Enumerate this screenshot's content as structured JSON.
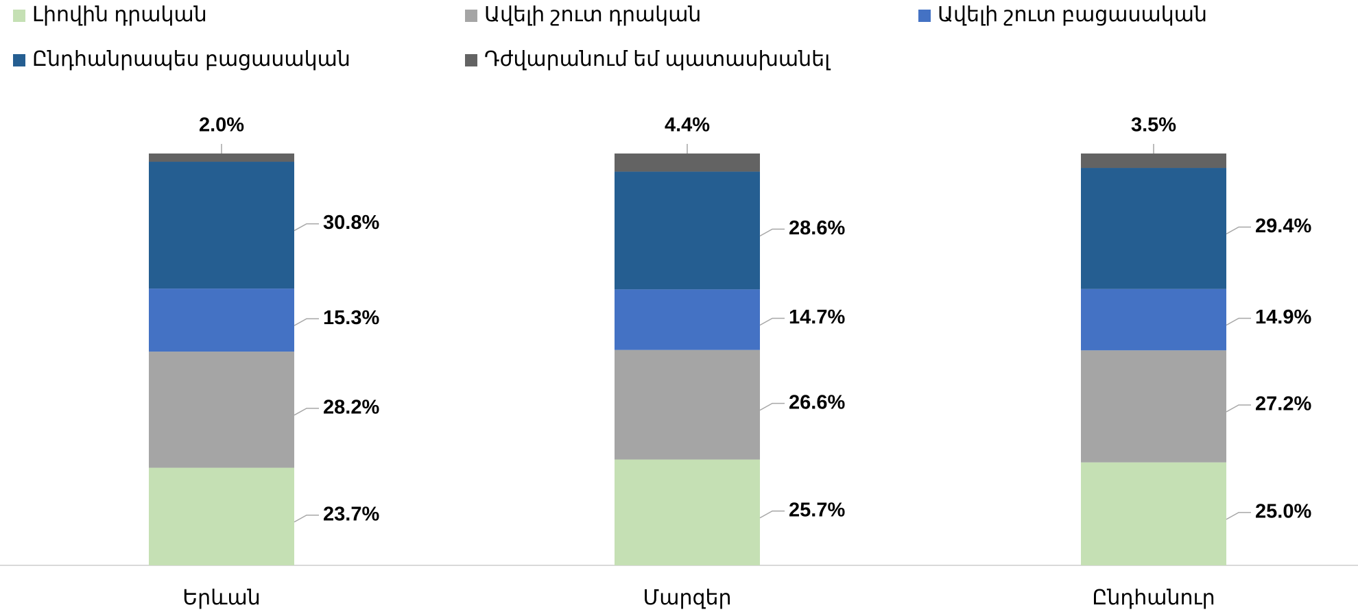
{
  "chart_data": {
    "type": "stacked_bar",
    "categories": [
      "Երևան",
      "Մարզեր",
      "Ընդհանուր"
    ],
    "series": [
      {
        "name": "Լիովին դրական",
        "color": "#c5e0b4",
        "values": [
          23.7,
          25.7,
          25.0
        ],
        "value_labels": [
          "23.7%",
          "25.7%",
          "25.0%"
        ]
      },
      {
        "name": "Ավելի շուտ դրական",
        "color": "#a5a5a5",
        "values": [
          28.2,
          26.6,
          27.2
        ],
        "value_labels": [
          "28.2%",
          "26.6%",
          "27.2%"
        ]
      },
      {
        "name": "Ավելի շուտ բացասական",
        "color": "#4472c4",
        "values": [
          15.3,
          14.7,
          14.9
        ],
        "value_labels": [
          "15.3%",
          "14.7%",
          "14.9%"
        ]
      },
      {
        "name": "Ընդհանրապես բացասական",
        "color": "#255e91",
        "values": [
          30.8,
          28.6,
          29.4
        ],
        "value_labels": [
          "30.8%",
          "28.6%",
          "29.4%"
        ]
      },
      {
        "name": "Դժվարանում եմ պատասխանել",
        "color": "#636363",
        "values": [
          2.0,
          4.4,
          3.5
        ],
        "value_labels": [
          "2.0%",
          "4.4%",
          "3.5%"
        ]
      }
    ],
    "legend": "top"
  }
}
